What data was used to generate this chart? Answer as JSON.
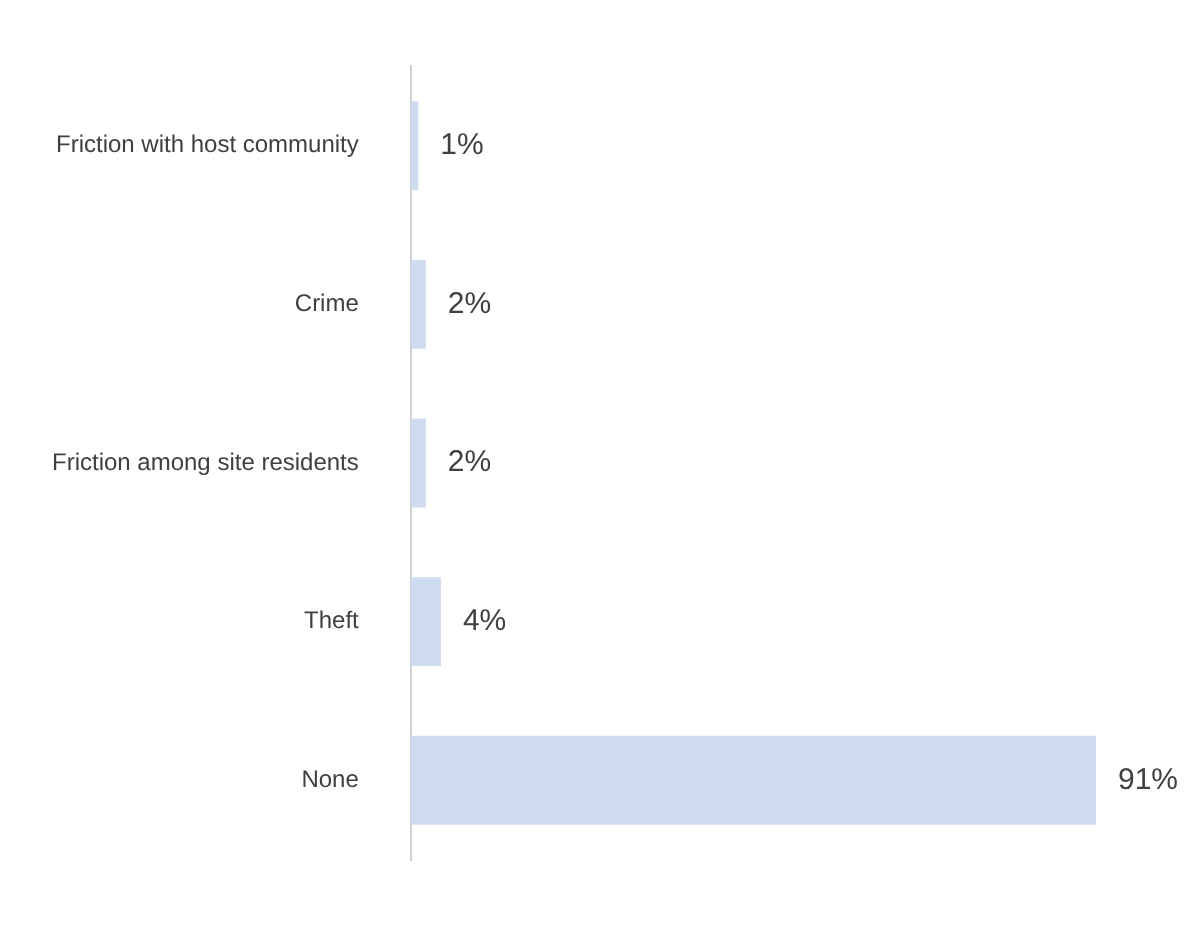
{
  "chart_data": {
    "type": "bar",
    "orientation": "horizontal",
    "categories": [
      "Friction with host community",
      "Crime",
      "Friction among site residents",
      "Theft",
      "None"
    ],
    "values": [
      1,
      2,
      2,
      4,
      91
    ],
    "value_labels": [
      "1%",
      "2%",
      "2%",
      "4%",
      "91%"
    ],
    "color": "#cfdcf0"
  }
}
